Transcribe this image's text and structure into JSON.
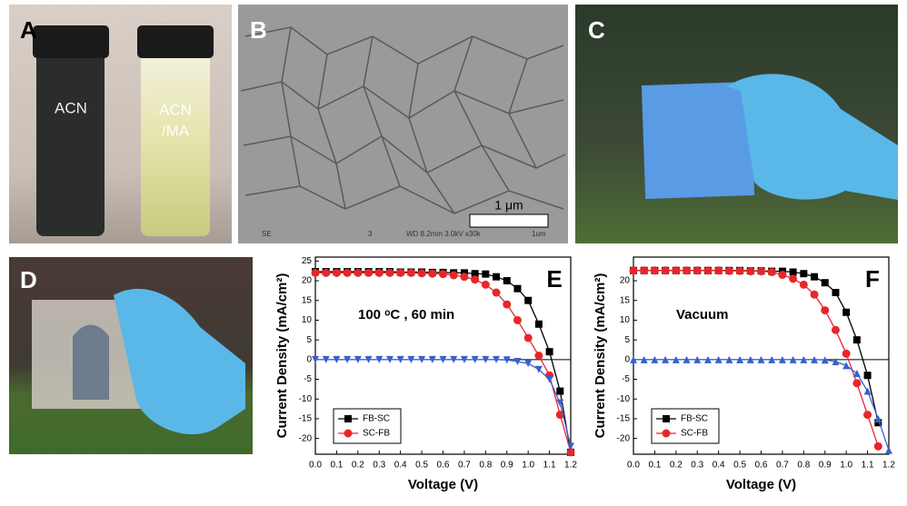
{
  "photo_a": {
    "letter": "A",
    "left_vial": "ACN",
    "right_vial": [
      "ACN",
      "/MA"
    ]
  },
  "photo_b": {
    "letter": "B",
    "scale_bar": "1 μm",
    "footer": [
      "SE",
      "3",
      "WD 8.2mm 3.0kV x30k",
      "1um"
    ]
  },
  "photo_c": {
    "letter": "C"
  },
  "photo_d": {
    "letter": "D"
  },
  "chart_data": [
    {
      "type": "line",
      "panel_label": "E",
      "annotation": "100 ᵒC , 60 min",
      "x_label": "Voltage (V)",
      "y_label": "Current Density (mA/cm²)",
      "x": [
        0,
        0.05,
        0.1,
        0.15,
        0.2,
        0.25,
        0.3,
        0.35,
        0.4,
        0.45,
        0.5,
        0.55,
        0.6,
        0.65,
        0.7,
        0.75,
        0.8,
        0.85,
        0.9,
        0.95,
        1.0,
        1.05,
        1.1,
        1.15,
        1.2
      ],
      "series": [
        {
          "name": "FB-SC",
          "color": "#000000",
          "marker": "square",
          "values": [
            22.3,
            22.3,
            22.3,
            22.3,
            22.3,
            22.3,
            22.3,
            22.3,
            22.2,
            22.2,
            22.2,
            22.1,
            22.1,
            22.0,
            22.0,
            21.8,
            21.7,
            21.0,
            20.0,
            18.0,
            15.0,
            9.0,
            2.0,
            -8.0,
            -23.5
          ]
        },
        {
          "name": "SC-FB",
          "color": "#e8262a",
          "marker": "circle",
          "values": [
            22.0,
            22.0,
            22.0,
            22.0,
            22.0,
            22.0,
            22.0,
            22.0,
            22.0,
            22.0,
            21.9,
            21.8,
            21.7,
            21.4,
            21.0,
            20.3,
            19.0,
            17.0,
            14.0,
            10.0,
            5.5,
            1.0,
            -4.0,
            -14.0,
            -23.5
          ]
        },
        {
          "color": "#3a5fcd",
          "marker": "triangle-down",
          "values": [
            0,
            0,
            0,
            0,
            0,
            0,
            0,
            0,
            0,
            0,
            0,
            0,
            0,
            0,
            0,
            0,
            0,
            0,
            -0.1,
            -0.5,
            -1.0,
            -2.5,
            -5.0,
            -11.0,
            -22.0
          ]
        }
      ],
      "xlim": [
        0,
        1.2
      ],
      "xticks": [
        {
          "value": 0,
          "label": "0.0"
        },
        0.1,
        0.2,
        0.3,
        0.4,
        0.5,
        0.6,
        0.7,
        0.8,
        0.9,
        {
          "value": 1,
          "label": "1.0"
        },
        1.1,
        1.2
      ],
      "ylim": [
        -24,
        26
      ],
      "yticks": [
        25,
        20,
        15,
        10,
        5,
        0,
        -5,
        -10,
        -15,
        -20
      ],
      "zero_line": true,
      "legend": "lower left"
    },
    {
      "type": "line",
      "panel_label": "F",
      "annotation": "Vacuum",
      "x_label": "Voltage (V)",
      "y_label": "Current Density (mA/cm²)",
      "x": [
        0,
        0.05,
        0.1,
        0.15,
        0.2,
        0.25,
        0.3,
        0.35,
        0.4,
        0.45,
        0.5,
        0.55,
        0.6,
        0.65,
        0.7,
        0.75,
        0.8,
        0.85,
        0.9,
        0.95,
        1.0,
        1.05,
        1.1,
        1.15,
        1.2
      ],
      "series": [
        {
          "name": "FB-SC",
          "color": "#000000",
          "marker": "square",
          "values": [
            22.6,
            22.6,
            22.6,
            22.6,
            22.6,
            22.6,
            22.6,
            22.6,
            22.6,
            22.6,
            22.6,
            22.5,
            22.5,
            22.4,
            22.4,
            22.2,
            21.8,
            21.0,
            19.5,
            17.0,
            12.0,
            5.0,
            -4.0,
            -16.0,
            null
          ]
        },
        {
          "name": "SC-FB",
          "color": "#e8262a",
          "marker": "circle",
          "values": [
            22.6,
            22.6,
            22.6,
            22.6,
            22.6,
            22.6,
            22.6,
            22.6,
            22.6,
            22.5,
            22.5,
            22.4,
            22.4,
            22.2,
            21.5,
            20.5,
            19.0,
            16.5,
            12.5,
            7.5,
            1.5,
            -6.0,
            -14.0,
            -22.0,
            null
          ]
        },
        {
          "color": "#3a5fcd",
          "marker": "triangle-up",
          "values": [
            0,
            0,
            0,
            0,
            0,
            0,
            0,
            0,
            0,
            0,
            0,
            0,
            0,
            0,
            0,
            0,
            0,
            0,
            -0.1,
            -0.5,
            -1.5,
            -3.5,
            -8.0,
            -15.0,
            -23.0
          ]
        }
      ],
      "xlim": [
        0,
        1.2
      ],
      "xticks": [
        {
          "value": 0,
          "label": "0.0"
        },
        0.1,
        0.2,
        0.3,
        0.4,
        0.5,
        0.6,
        0.7,
        0.8,
        0.9,
        {
          "value": 1,
          "label": "1.0"
        },
        1.1,
        1.2
      ],
      "ylim": [
        -24,
        26
      ],
      "yticks": [
        20,
        15,
        10,
        5,
        0,
        -5,
        -10,
        -15,
        -20
      ],
      "zero_line": true,
      "legend": "lower left"
    }
  ]
}
